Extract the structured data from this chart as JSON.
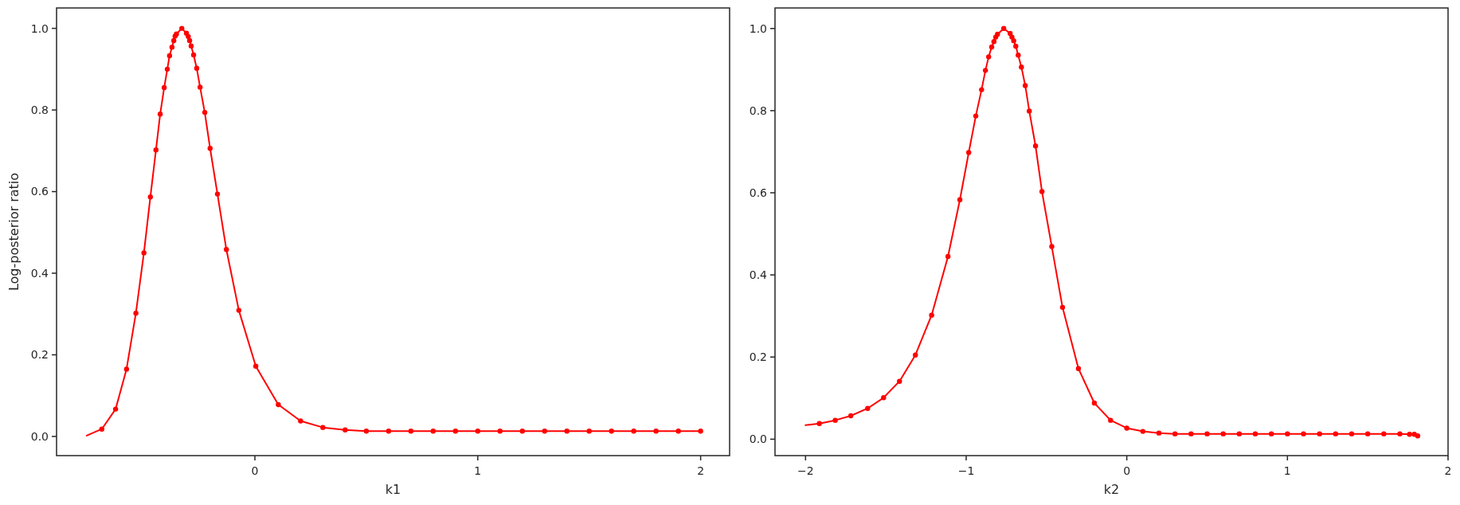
{
  "chart_data": [
    {
      "type": "line",
      "xlabel": "k1",
      "ylabel": "Log-posterior ratio",
      "xlim": [
        -0.89,
        2.13
      ],
      "ylim": [
        -0.047,
        1.05
      ],
      "xticks": [
        0,
        1,
        2
      ],
      "yticks": [
        {
          "value": 0,
          "label": "0.0"
        },
        {
          "value": 0.2,
          "label": "0.2"
        },
        {
          "value": 0.4,
          "label": "0.4"
        },
        {
          "value": 0.6,
          "label": "0.6"
        },
        {
          "value": 0.8,
          "label": "0.8"
        },
        {
          "value": 1,
          "label": "1.0"
        }
      ],
      "grid": false,
      "series": [
        {
          "marker": "none",
          "color": "#ff0000",
          "x": [
            -0.755,
            -0.687,
            -0.625,
            -0.576,
            -0.534,
            -0.498,
            -0.469,
            -0.444,
            -0.425,
            -0.407,
            -0.393,
            -0.383,
            -0.372,
            -0.364,
            -0.358,
            -0.352,
            -0.328,
            -0.307,
            -0.299,
            -0.293,
            -0.286,
            -0.275,
            -0.261,
            -0.246,
            -0.225,
            -0.201,
            -0.168,
            -0.128,
            -0.072,
            0.004,
            0.105,
            0.205,
            0.305,
            0.405,
            0.5,
            0.6,
            0.7,
            0.8,
            0.9,
            1.0,
            1.1,
            1.2,
            1.3,
            1.4,
            1.5,
            1.6,
            1.7,
            1.8,
            1.9,
            2.0
          ],
          "values": [
            0.002,
            0.018,
            0.067,
            0.165,
            0.302,
            0.45,
            0.587,
            0.702,
            0.79,
            0.855,
            0.9,
            0.933,
            0.954,
            0.97,
            0.981,
            0.986,
            1.0,
            0.988,
            0.98,
            0.97,
            0.957,
            0.935,
            0.902,
            0.856,
            0.794,
            0.706,
            0.594,
            0.458,
            0.309,
            0.172,
            0.078,
            0.038,
            0.022,
            0.016,
            0.013,
            0.013,
            0.013,
            0.013,
            0.013,
            0.013,
            0.013,
            0.013,
            0.013,
            0.013,
            0.013,
            0.013,
            0.013,
            0.013,
            0.013,
            0.013
          ]
        },
        {
          "type": "scatter",
          "marker": "circle",
          "color": "#ff0000",
          "x": [
            -0.687,
            -0.625,
            -0.576,
            -0.534,
            -0.498,
            -0.469,
            -0.444,
            -0.425,
            -0.407,
            -0.393,
            -0.383,
            -0.372,
            -0.364,
            -0.358,
            -0.352,
            -0.328,
            -0.307,
            -0.299,
            -0.293,
            -0.286,
            -0.275,
            -0.261,
            -0.246,
            -0.225,
            -0.201,
            -0.168,
            -0.128,
            -0.072,
            0.004,
            0.105,
            0.205,
            0.305,
            0.405,
            0.5,
            0.6,
            0.7,
            0.8,
            0.9,
            1.0,
            1.1,
            1.2,
            1.3,
            1.4,
            1.5,
            1.6,
            1.7,
            1.8,
            1.9,
            2.0
          ],
          "values": [
            0.018,
            0.067,
            0.165,
            0.302,
            0.45,
            0.587,
            0.702,
            0.79,
            0.855,
            0.9,
            0.933,
            0.954,
            0.97,
            0.981,
            0.986,
            1.0,
            0.988,
            0.98,
            0.97,
            0.957,
            0.935,
            0.902,
            0.856,
            0.794,
            0.706,
            0.594,
            0.458,
            0.309,
            0.172,
            0.078,
            0.038,
            0.022,
            0.016,
            0.013,
            0.013,
            0.013,
            0.013,
            0.013,
            0.013,
            0.013,
            0.013,
            0.013,
            0.013,
            0.013,
            0.013,
            0.013,
            0.013,
            0.013,
            0.013
          ]
        }
      ]
    },
    {
      "type": "line",
      "xlabel": "k2",
      "xlim": [
        -2.19,
        2
      ],
      "ylim": [
        -0.04,
        1.05
      ],
      "xticks": [
        {
          "value": -2,
          "label": "−2"
        },
        {
          "value": -1,
          "label": "−1"
        },
        0,
        1,
        2
      ],
      "yticks": [
        {
          "value": 0,
          "label": "0.0"
        },
        {
          "value": 0.2,
          "label": "0.2"
        },
        {
          "value": 0.4,
          "label": "0.4"
        },
        {
          "value": 0.6,
          "label": "0.6"
        },
        {
          "value": 0.8,
          "label": "0.8"
        },
        {
          "value": 1,
          "label": "1.0"
        }
      ],
      "grid": false,
      "series": [
        {
          "marker": "none",
          "color": "#ff0000",
          "x": [
            -2.0,
            -1.914,
            -1.815,
            -1.718,
            -1.613,
            -1.514,
            -1.415,
            -1.316,
            -1.215,
            -1.113,
            -1.039,
            -0.984,
            -0.94,
            -0.904,
            -0.88,
            -0.86,
            -0.841,
            -0.827,
            -0.816,
            -0.805,
            -0.766,
            -0.726,
            -0.715,
            -0.704,
            -0.691,
            -0.676,
            -0.656,
            -0.632,
            -0.607,
            -0.568,
            -0.528,
            -0.467,
            -0.4,
            -0.301,
            -0.202,
            -0.101,
            0.0,
            0.1,
            0.2,
            0.3,
            0.4,
            0.5,
            0.6,
            0.7,
            0.8,
            0.9,
            1.0,
            1.1,
            1.2,
            1.3,
            1.4,
            1.5,
            1.6,
            1.7,
            1.76,
            1.79,
            1.811
          ],
          "values": [
            0.034,
            0.038,
            0.046,
            0.057,
            0.075,
            0.101,
            0.141,
            0.205,
            0.302,
            0.445,
            0.583,
            0.698,
            0.787,
            0.851,
            0.898,
            0.931,
            0.955,
            0.968,
            0.979,
            0.986,
            1.0,
            0.988,
            0.979,
            0.97,
            0.957,
            0.935,
            0.906,
            0.861,
            0.799,
            0.714,
            0.603,
            0.469,
            0.321,
            0.172,
            0.088,
            0.046,
            0.027,
            0.019,
            0.015,
            0.013,
            0.013,
            0.013,
            0.013,
            0.013,
            0.013,
            0.013,
            0.013,
            0.013,
            0.013,
            0.013,
            0.013,
            0.013,
            0.013,
            0.013,
            0.012,
            0.012,
            0.008
          ]
        },
        {
          "type": "scatter",
          "marker": "circle",
          "color": "#ff0000",
          "x": [
            -1.914,
            -1.815,
            -1.718,
            -1.613,
            -1.514,
            -1.415,
            -1.316,
            -1.215,
            -1.113,
            -1.039,
            -0.984,
            -0.94,
            -0.904,
            -0.88,
            -0.86,
            -0.841,
            -0.827,
            -0.816,
            -0.805,
            -0.766,
            -0.726,
            -0.715,
            -0.704,
            -0.691,
            -0.676,
            -0.656,
            -0.632,
            -0.607,
            -0.568,
            -0.528,
            -0.467,
            -0.4,
            -0.301,
            -0.202,
            -0.101,
            0.0,
            0.1,
            0.2,
            0.3,
            0.4,
            0.5,
            0.6,
            0.7,
            0.8,
            0.9,
            1.0,
            1.1,
            1.2,
            1.3,
            1.4,
            1.5,
            1.6,
            1.7,
            1.76,
            1.79,
            1.811
          ],
          "values": [
            0.038,
            0.046,
            0.057,
            0.075,
            0.101,
            0.141,
            0.205,
            0.302,
            0.445,
            0.583,
            0.698,
            0.787,
            0.851,
            0.898,
            0.931,
            0.955,
            0.968,
            0.979,
            0.986,
            1.0,
            0.988,
            0.979,
            0.97,
            0.957,
            0.935,
            0.906,
            0.861,
            0.799,
            0.714,
            0.603,
            0.469,
            0.321,
            0.172,
            0.088,
            0.046,
            0.027,
            0.019,
            0.015,
            0.013,
            0.013,
            0.013,
            0.013,
            0.013,
            0.013,
            0.013,
            0.013,
            0.013,
            0.013,
            0.013,
            0.013,
            0.013,
            0.013,
            0.013,
            0.012,
            0.012,
            0.008
          ]
        }
      ]
    }
  ]
}
